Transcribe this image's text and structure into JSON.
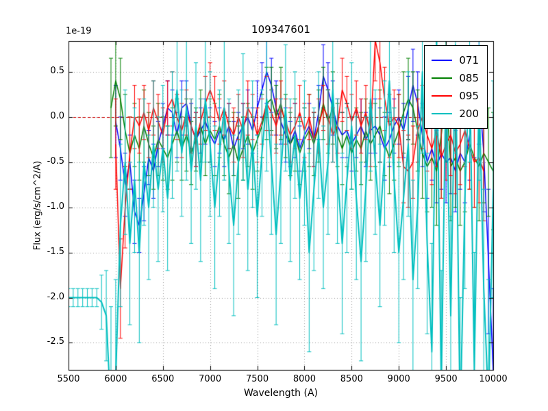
{
  "chart_data": {
    "type": "line",
    "title": "109347601",
    "xlabel": "Wavelength (A)",
    "ylabel": "Flux (erg/s/cm^2/A)",
    "y_offset_label": "1e-19",
    "xlim": [
      5500,
      10000
    ],
    "ylim": [
      -2.8,
      0.84
    ],
    "grid": true,
    "grid_color": "#999999",
    "error_bars": true,
    "zero_line": {
      "y": 0.0,
      "color": "#cc0000",
      "style": "dashed"
    },
    "legend_position": "upper right",
    "x_ticks": [
      5500,
      6000,
      6500,
      7000,
      7500,
      8000,
      8500,
      9000,
      9500,
      10000
    ],
    "x_tick_labels": [
      "5500",
      "6000",
      "6500",
      "7000",
      "7500",
      "8000",
      "8500",
      "9000",
      "9500",
      "10000"
    ],
    "y_ticks": [
      0.5,
      0.0,
      -0.5,
      -1.0,
      -1.5,
      -2.0,
      -2.5
    ],
    "y_tick_labels": [
      "0.5",
      "0.0",
      "-0.5",
      "-1.0",
      "-1.5",
      "-2.0",
      "-2.5"
    ],
    "series": [
      {
        "name": "071",
        "color": "#0000ff",
        "line_width": 1.5,
        "x_start": 6000,
        "x_step": 50,
        "values": [
          -0.05,
          -0.35,
          -0.75,
          -0.5,
          -1.05,
          -1.2,
          -0.85,
          -0.45,
          -0.6,
          -0.3,
          -0.1,
          0.1,
          0.05,
          -0.2,
          0.1,
          0.15,
          -0.1,
          -0.25,
          -0.15,
          -0.05,
          -0.2,
          -0.3,
          -0.15,
          -0.25,
          -0.1,
          -0.35,
          -0.2,
          -0.1,
          0.0,
          -0.15,
          0.1,
          0.3,
          0.5,
          0.35,
          0.1,
          -0.05,
          -0.2,
          -0.3,
          -0.15,
          -0.35,
          -0.2,
          -0.1,
          -0.25,
          0.05,
          0.45,
          0.3,
          0.1,
          -0.1,
          -0.2,
          -0.15,
          -0.3,
          -0.2,
          -0.1,
          -0.25,
          -0.15,
          -0.1,
          -0.2,
          -0.35,
          -0.25,
          -0.1,
          0.0,
          -0.15,
          0.1,
          0.35,
          0.15,
          -0.2,
          -0.5,
          -0.35,
          -0.55,
          -0.4,
          -0.5,
          -0.45,
          -0.6,
          -0.4,
          -0.5,
          -0.2,
          0.1,
          0.3,
          -0.4,
          -1.6,
          -2.8
        ],
        "errors": [
          0.4,
          0.35,
          0.35,
          0.3,
          0.35,
          0.3,
          0.3,
          0.3,
          0.3,
          0.25,
          0.25,
          0.3,
          0.25,
          0.25,
          0.3,
          0.25,
          0.25,
          0.3,
          0.25,
          0.25,
          0.3,
          0.25,
          0.25,
          0.3,
          0.25,
          0.3,
          0.25,
          0.25,
          0.3,
          0.25,
          0.3,
          0.3,
          0.35,
          0.3,
          0.3,
          0.25,
          0.3,
          0.25,
          0.3,
          0.25,
          0.3,
          0.25,
          0.3,
          0.3,
          0.35,
          0.3,
          0.3,
          0.3,
          0.25,
          0.3,
          0.3,
          0.25,
          0.3,
          0.3,
          0.25,
          0.3,
          0.3,
          0.35,
          0.3,
          0.3,
          0.3,
          0.3,
          0.35,
          0.4,
          0.35,
          0.35,
          0.4,
          0.35,
          0.4,
          0.4,
          0.45,
          0.4,
          0.45,
          0.4,
          0.45,
          0.5,
          0.55,
          0.6,
          0.65,
          0.8,
          0.9
        ]
      },
      {
        "name": "085",
        "color": "#007f00",
        "line_width": 1.5,
        "x_start": 5950,
        "x_step": 50,
        "values": [
          0.1,
          0.4,
          0.2,
          -0.15,
          -0.4,
          -0.2,
          -0.35,
          -0.1,
          -0.3,
          -0.45,
          -0.25,
          -0.35,
          -0.45,
          -0.3,
          -0.15,
          -0.35,
          -0.2,
          -0.4,
          -0.25,
          -0.1,
          -0.3,
          -0.15,
          -0.25,
          -0.1,
          -0.3,
          -0.45,
          -0.3,
          -0.5,
          -0.35,
          -0.2,
          -0.4,
          -0.25,
          -0.1,
          0.15,
          0.2,
          0.0,
          0.15,
          -0.1,
          -0.3,
          -0.2,
          -0.4,
          -0.25,
          -0.15,
          -0.3,
          -0.1,
          0.15,
          -0.05,
          0.1,
          -0.2,
          -0.35,
          -0.2,
          -0.4,
          -0.25,
          -0.35,
          -0.15,
          -0.3,
          -0.2,
          -0.1,
          -0.3,
          -0.45,
          -0.3,
          -0.15,
          0.05,
          0.2,
          0.1,
          -0.15,
          -0.4,
          -0.55,
          -0.45,
          -0.6,
          -0.2,
          0.3,
          -0.55,
          -0.45,
          -0.6,
          -0.5,
          -0.3,
          -0.45,
          -0.55,
          -0.4,
          -0.5,
          -0.6
        ],
        "errors": [
          0.55,
          0.5,
          0.45,
          0.4,
          0.4,
          0.35,
          0.35,
          0.4,
          0.35,
          0.35,
          0.4,
          0.35,
          0.35,
          0.4,
          0.35,
          0.35,
          0.4,
          0.35,
          0.35,
          0.4,
          0.35,
          0.35,
          0.4,
          0.35,
          0.35,
          0.4,
          0.35,
          0.4,
          0.35,
          0.35,
          0.4,
          0.35,
          0.35,
          0.4,
          0.35,
          0.35,
          0.4,
          0.35,
          0.35,
          0.4,
          0.35,
          0.35,
          0.4,
          0.35,
          0.4,
          0.4,
          0.35,
          0.4,
          0.35,
          0.4,
          0.35,
          0.4,
          0.35,
          0.4,
          0.35,
          0.4,
          0.35,
          0.4,
          0.35,
          0.4,
          0.4,
          0.4,
          0.45,
          0.45,
          0.4,
          0.45,
          0.5,
          0.5,
          0.55,
          0.6,
          0.7,
          0.8,
          0.6,
          0.55,
          0.6,
          0.55,
          0.5,
          0.55,
          0.6,
          0.55,
          0.6,
          0.65
        ]
      },
      {
        "name": "095",
        "color": "#ff0000",
        "line_width": 1.5,
        "x_start": 6000,
        "x_step": 50,
        "values": [
          -0.3,
          -1.9,
          -1.0,
          -0.4,
          0.0,
          -0.1,
          0.05,
          -0.15,
          0.1,
          -0.05,
          -0.2,
          0.1,
          0.2,
          0.0,
          -0.15,
          0.05,
          -0.1,
          -0.25,
          -0.05,
          0.15,
          0.3,
          0.15,
          -0.05,
          0.1,
          -0.1,
          -0.2,
          0.0,
          -0.15,
          0.1,
          0.0,
          -0.2,
          -0.05,
          0.15,
          0.05,
          -0.1,
          0.1,
          -0.05,
          -0.2,
          -0.1,
          0.05,
          -0.15,
          0.0,
          -0.25,
          -0.1,
          0.1,
          0.0,
          -0.2,
          -0.1,
          0.3,
          0.15,
          -0.05,
          0.1,
          -0.1,
          0.05,
          -0.2,
          0.85,
          0.6,
          0.2,
          -0.1,
          0.0,
          -0.1,
          -0.55,
          -0.6,
          -0.5,
          -0.15,
          0.0,
          -0.2,
          -0.35,
          -0.15,
          -0.45,
          -0.3,
          -0.2,
          -0.4,
          -0.3,
          -0.15,
          -0.35,
          -0.5,
          -0.45,
          -0.6
        ],
        "errors": [
          0.5,
          0.55,
          0.45,
          0.4,
          0.35,
          0.3,
          0.3,
          0.3,
          0.3,
          0.3,
          0.3,
          0.3,
          0.3,
          0.25,
          0.3,
          0.25,
          0.3,
          0.3,
          0.25,
          0.3,
          0.3,
          0.3,
          0.25,
          0.3,
          0.25,
          0.3,
          0.25,
          0.3,
          0.3,
          0.25,
          0.3,
          0.25,
          0.3,
          0.25,
          0.3,
          0.3,
          0.25,
          0.3,
          0.25,
          0.3,
          0.3,
          0.25,
          0.3,
          0.3,
          0.25,
          0.3,
          0.3,
          0.3,
          0.35,
          0.3,
          0.3,
          0.3,
          0.3,
          0.3,
          0.35,
          0.45,
          0.4,
          0.35,
          0.35,
          0.3,
          0.35,
          0.4,
          0.4,
          0.4,
          0.35,
          0.35,
          0.4,
          0.4,
          0.4,
          0.45,
          0.4,
          0.45,
          0.45,
          0.45,
          0.4,
          0.45,
          0.5,
          0.5,
          0.55
        ]
      },
      {
        "name": "200",
        "color": "#00bfbf",
        "line_width": 2,
        "x_start": 5500,
        "x_step": 50,
        "values": [
          -2.0,
          -2.0,
          -2.0,
          -2.0,
          -2.0,
          -2.0,
          -2.0,
          -2.05,
          -2.2,
          -3.3,
          -2.9,
          -1.2,
          -0.5,
          -1.4,
          -0.7,
          -1.5,
          -0.5,
          -1.0,
          -0.3,
          -0.8,
          -0.35,
          -0.9,
          -0.2,
          0.3,
          -0.4,
          0.1,
          -0.6,
          -0.1,
          -0.7,
          0.2,
          -0.3,
          -1.0,
          -0.4,
          0.1,
          -0.6,
          -1.2,
          -0.5,
          0.0,
          -0.8,
          -0.3,
          -1.1,
          -0.4,
          0.2,
          -0.5,
          -1.3,
          -0.6,
          0.1,
          -0.7,
          -0.2,
          -0.9,
          -0.4,
          -1.5,
          -0.8,
          -0.2,
          -1.0,
          -0.5,
          0.3,
          -0.6,
          -1.4,
          -0.7,
          -0.1,
          -0.9,
          -1.6,
          -0.8,
          0.2,
          -0.5,
          -1.2,
          -0.4,
          0.4,
          -0.7,
          -1.5,
          -0.9,
          -0.3,
          -1.8,
          -1.0,
          0.5,
          -1.4,
          -2.6,
          0.9,
          -3.0,
          0.5,
          -2.2,
          0.8,
          -3.4,
          -0.9,
          0.6,
          -2.8,
          0.3,
          -1.9,
          -3.2,
          -0.8
        ],
        "errors": [
          0.1,
          0.1,
          0.1,
          0.1,
          0.1,
          0.1,
          0.1,
          0.3,
          0.5,
          1.2,
          1.1,
          0.9,
          0.8,
          0.9,
          0.8,
          1.0,
          0.7,
          0.8,
          0.7,
          0.8,
          0.7,
          0.8,
          0.7,
          0.9,
          0.7,
          0.8,
          0.8,
          0.7,
          0.9,
          0.7,
          0.8,
          0.9,
          0.7,
          0.8,
          0.8,
          1.0,
          0.8,
          0.7,
          0.9,
          0.7,
          0.9,
          0.7,
          0.8,
          0.8,
          1.0,
          0.8,
          0.7,
          0.9,
          0.7,
          0.9,
          0.8,
          1.1,
          0.9,
          0.7,
          0.9,
          0.8,
          0.8,
          0.8,
          1.0,
          0.8,
          0.7,
          0.9,
          1.1,
          0.8,
          0.8,
          0.8,
          0.9,
          0.8,
          0.9,
          0.8,
          1.0,
          0.9,
          0.8,
          1.1,
          0.9,
          0.9,
          1.0,
          1.2,
          1.1,
          1.3,
          1.0,
          1.1,
          1.2,
          1.4,
          1.0,
          1.1,
          1.3,
          1.0,
          1.1,
          1.4,
          1.2
        ]
      }
    ]
  }
}
